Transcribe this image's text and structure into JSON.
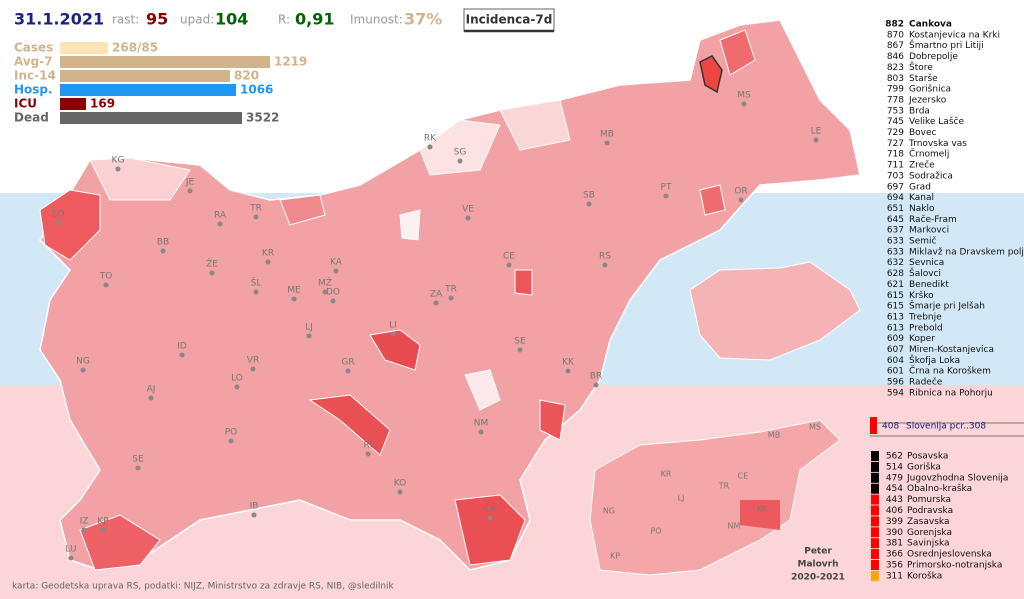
{
  "header": {
    "date": "31.1.2021",
    "rast_label": "rast:",
    "rast": "95",
    "upad_label": "upad:",
    "upad": "104",
    "r_label": "R:",
    "r": "0,91",
    "imunost_label": "Imunost:",
    "imunost": "37%",
    "button": "Incidenca-7d"
  },
  "stats": [
    {
      "label": "Cases",
      "value": "268/85"
    },
    {
      "label": "Avg-7",
      "value": "1219"
    },
    {
      "label": "Inc-14",
      "value": "820"
    },
    {
      "label": "Hosp.",
      "value": "1066"
    },
    {
      "label": "ICU",
      "value": "169"
    },
    {
      "label": "Dead",
      "value": "3522"
    }
  ],
  "ranking": [
    {
      "value": "882",
      "name": "Cankova"
    },
    {
      "value": "870",
      "name": "Kostanjevica na Krki"
    },
    {
      "value": "867",
      "name": "Šmartno pri Litiji"
    },
    {
      "value": "846",
      "name": "Dobrepolje"
    },
    {
      "value": "823",
      "name": "Štore"
    },
    {
      "value": "803",
      "name": "Starše"
    },
    {
      "value": "799",
      "name": "Gorišnica"
    },
    {
      "value": "778",
      "name": "Jezersko"
    },
    {
      "value": "753",
      "name": "Brda"
    },
    {
      "value": "745",
      "name": "Velike Lašče"
    },
    {
      "value": "729",
      "name": "Bovec"
    },
    {
      "value": "727",
      "name": "Trnovska vas"
    },
    {
      "value": "718",
      "name": "Črnomelj"
    },
    {
      "value": "711",
      "name": "Zreče"
    },
    {
      "value": "703",
      "name": "Sodražica"
    },
    {
      "value": "697",
      "name": "Grad"
    },
    {
      "value": "694",
      "name": "Kanal"
    },
    {
      "value": "651",
      "name": "Naklo"
    },
    {
      "value": "645",
      "name": "Rače-Fram"
    },
    {
      "value": "637",
      "name": "Markovci"
    },
    {
      "value": "633",
      "name": "Semič"
    },
    {
      "value": "633",
      "name": "Miklavž na Dravskem polju"
    },
    {
      "value": "632",
      "name": "Sevnica"
    },
    {
      "value": "628",
      "name": "Šalovci"
    },
    {
      "value": "621",
      "name": "Benedikt"
    },
    {
      "value": "615",
      "name": "Krško"
    },
    {
      "value": "615",
      "name": "Šmarje pri Jelšah"
    },
    {
      "value": "613",
      "name": "Trebnje"
    },
    {
      "value": "613",
      "name": "Prebold"
    },
    {
      "value": "609",
      "name": "Koper"
    },
    {
      "value": "607",
      "name": "Miren-Kostanjevica"
    },
    {
      "value": "604",
      "name": "Škofja Loka"
    },
    {
      "value": "601",
      "name": "Črna na Koroškem"
    },
    {
      "value": "596",
      "name": "Radeče"
    },
    {
      "value": "594",
      "name": "Ribnica na Pohorju"
    }
  ],
  "slovenia": {
    "value": "408",
    "label": "Slovenija  pcr..308"
  },
  "regions": [
    {
      "value": "562",
      "name": "Posavska",
      "color": "#000000"
    },
    {
      "value": "514",
      "name": "Goriška",
      "color": "#000000"
    },
    {
      "value": "479",
      "name": "Jugovzhodna Slovenija",
      "color": "#000000"
    },
    {
      "value": "454",
      "name": "Obalno-kraška",
      "color": "#000000"
    },
    {
      "value": "443",
      "name": "Pomurska",
      "color": "#ff0000"
    },
    {
      "value": "406",
      "name": "Podravska",
      "color": "#ff0000"
    },
    {
      "value": "399",
      "name": "Zasavska",
      "color": "#ff0000"
    },
    {
      "value": "390",
      "name": "Gorenjska",
      "color": "#ff0000"
    },
    {
      "value": "381",
      "name": "Savinjska",
      "color": "#ff0000"
    },
    {
      "value": "366",
      "name": "Osrednjeslovenska",
      "color": "#ff0000"
    },
    {
      "value": "356",
      "name": "Primorsko-notranjska",
      "color": "#ff0000"
    },
    {
      "value": "311",
      "name": "Koroška",
      "color": "#ffa500"
    }
  ],
  "map_labels": [
    "KG",
    "JE",
    "RA",
    "TR",
    "KR",
    "BB",
    "ŽE",
    "ŠL",
    "ME",
    "KA",
    "MŽ",
    "DO",
    "LJ",
    "LI",
    "ZA",
    "TR",
    "CE",
    "VE",
    "SG",
    "RK",
    "MB",
    "MS",
    "LE",
    "PT",
    "OR",
    "SB",
    "RS",
    "SE",
    "KK",
    "BR",
    "NM",
    "GR",
    "VR",
    "LO",
    "ID",
    "AJ",
    "NG",
    "TO",
    "SO",
    "PO",
    "SE",
    "IB",
    "KO",
    "RI",
    "ČR",
    "IZ",
    "KP",
    "LU"
  ],
  "inset_labels": [
    "MB",
    "MS",
    "KR",
    "CE",
    "TR",
    "LJ",
    "NG",
    "PO",
    "NM",
    "KK",
    "KP"
  ],
  "author": [
    "Peter",
    "Malovrh",
    "2020-2021"
  ],
  "credit": "karta: Geodetska uprava RS,  podatki: NIJZ, Ministrstvo za zdravje RS, NIB, @sledilnik"
}
